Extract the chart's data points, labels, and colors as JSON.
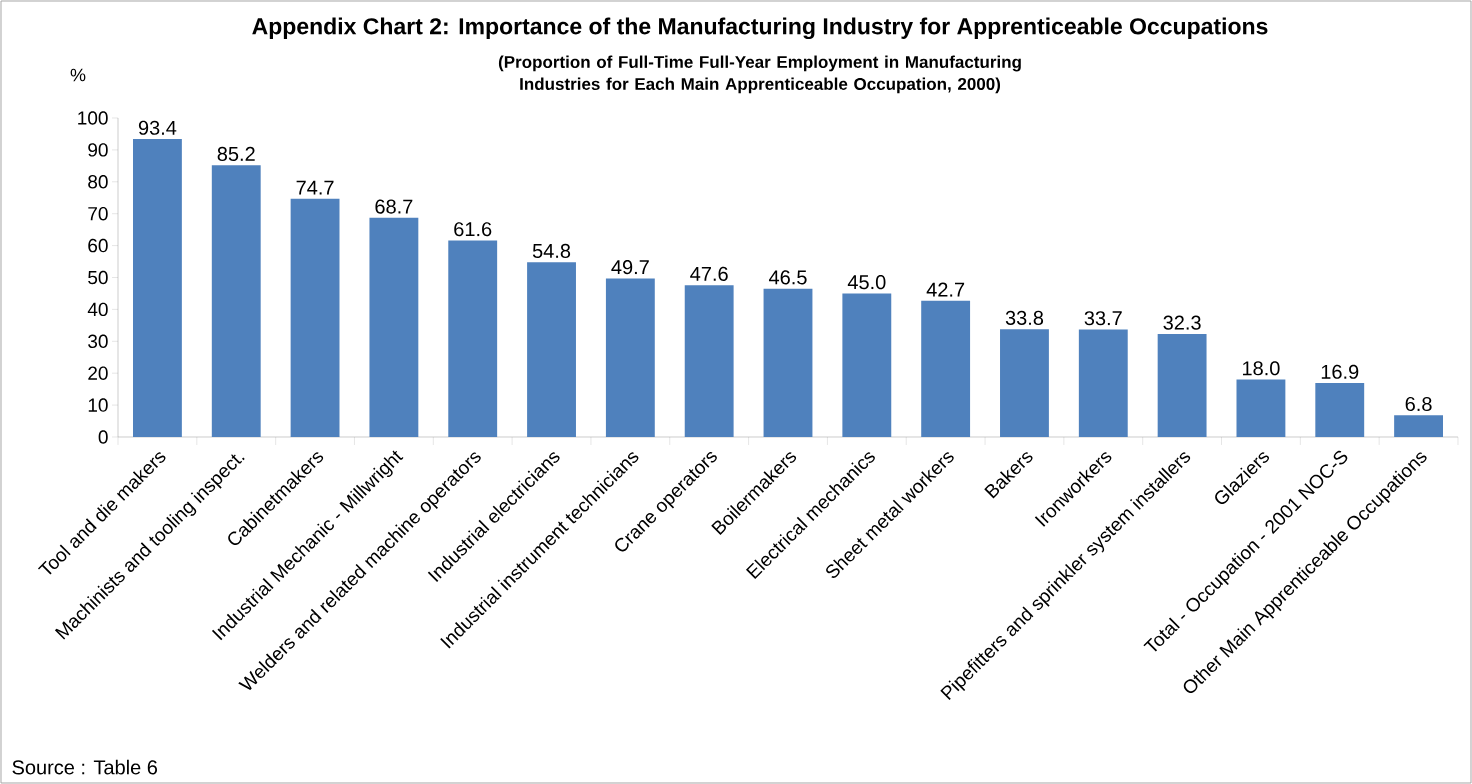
{
  "chart_data": {
    "type": "bar",
    "title": "Appendix Chart 2: Importance of the Manufacturing Industry for Apprenticeable Occupations",
    "subtitle": "(Proportion of Full-Time Full-Year Employment in Manufacturing Industries for Each Main Apprenticeable Occupation, 2000)",
    "ylabel": "%",
    "annotations": [
      "Source : Table 6"
    ],
    "categories": [
      "Tool and die makers",
      "Machinists and tooling inspect.",
      "Cabinetmakers",
      "Industrial Mechanic - Millwright",
      "Welders and related machine operators",
      "Industrial electricians",
      "Industrial instrument technicians",
      "Crane operators",
      "Boilermakers",
      "Electrical mechanics",
      "Sheet metal workers",
      "Bakers",
      "Ironworkers",
      "Pipefitters and sprinkler system installers",
      "Glaziers",
      "Total - Occupation - 2001 NOC-S",
      "Other Main Apprenticeable Occupations"
    ],
    "values": [
      93.4,
      85.2,
      74.7,
      68.7,
      61.6,
      54.8,
      49.7,
      47.6,
      46.5,
      45.0,
      42.7,
      33.8,
      33.7,
      32.3,
      18.0,
      16.9,
      6.8
    ],
    "value_labels": [
      "93.4",
      "85.2",
      "74.7",
      "68.7",
      "61.6",
      "54.8",
      "49.7",
      "47.6",
      "46.5",
      "45.0",
      "42.7",
      "33.8",
      "33.7",
      "32.3",
      "18.0",
      "16.9",
      "6.8"
    ],
    "color": "#4f81bd",
    "ylim": [
      0,
      100
    ],
    "yticks": [
      0,
      10,
      20,
      30,
      40,
      50,
      60,
      70,
      80,
      90,
      100
    ]
  }
}
